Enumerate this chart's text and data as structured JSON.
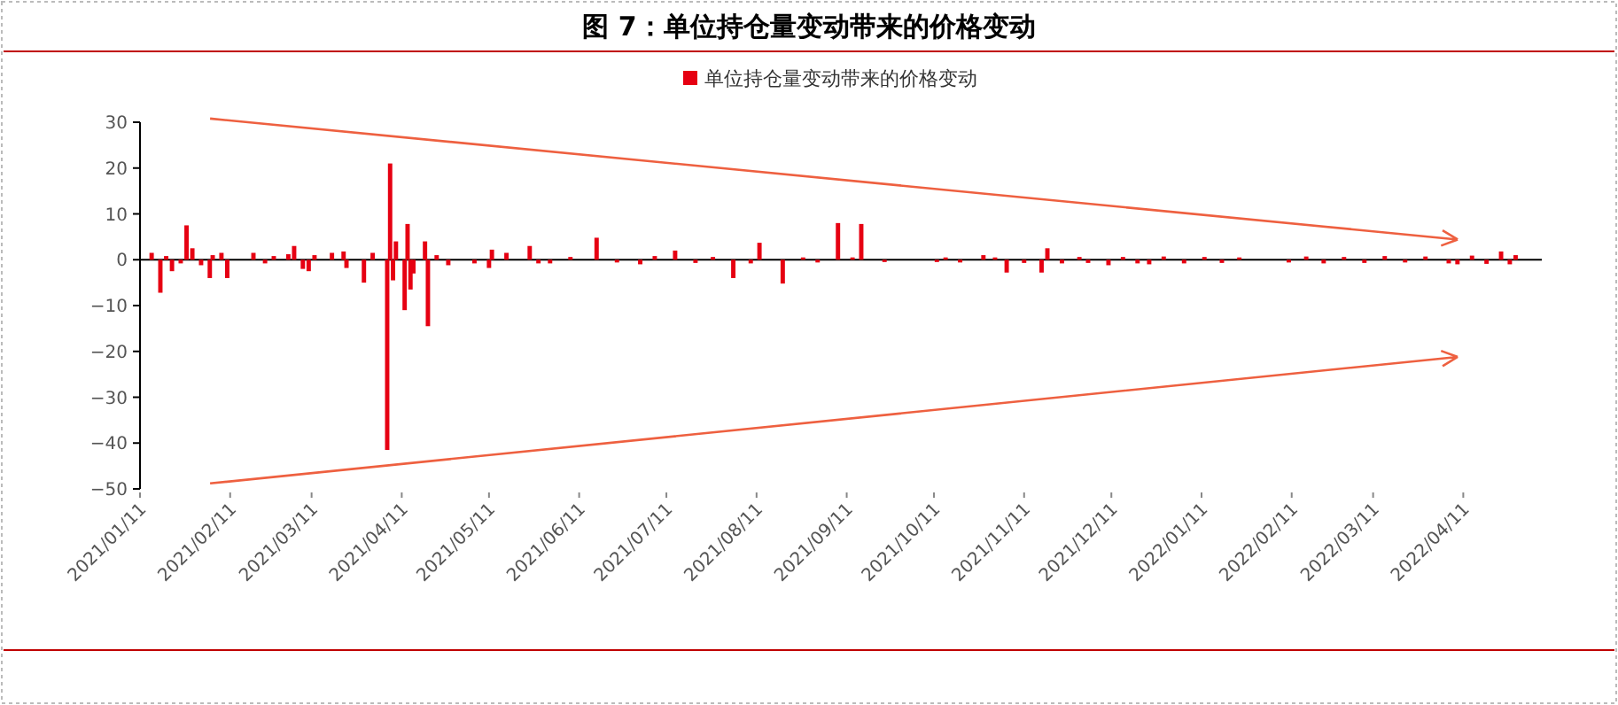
{
  "chart_data": {
    "type": "bar",
    "title": "图 7：单位持仓量变动带来的价格变动",
    "legend": "top",
    "xlim": [
      "2021-01-11",
      "2022-05-08"
    ],
    "ylim": [
      -50,
      30
    ],
    "yticks": [
      -50,
      -40,
      -30,
      -20,
      -10,
      0,
      10,
      20,
      30
    ],
    "xticks": [
      {
        "value": "2021-01-11",
        "label": "2021/01/11"
      },
      {
        "value": "2021-02-11",
        "label": "2021/02/11"
      },
      {
        "value": "2021-03-11",
        "label": "2021/03/11"
      },
      {
        "value": "2021-04-11",
        "label": "2021/04/11"
      },
      {
        "value": "2021-05-11",
        "label": "2021/05/11"
      },
      {
        "value": "2021-06-11",
        "label": "2021/06/11"
      },
      {
        "value": "2021-07-11",
        "label": "2021/07/11"
      },
      {
        "value": "2021-08-11",
        "label": "2021/08/11"
      },
      {
        "value": "2021-09-11",
        "label": "2021/09/11"
      },
      {
        "value": "2021-10-11",
        "label": "2021/10/11"
      },
      {
        "value": "2021-11-11",
        "label": "2021/11/11"
      },
      {
        "value": "2021-12-11",
        "label": "2021/12/11"
      },
      {
        "value": "2022-01-11",
        "label": "2022/01/11"
      },
      {
        "value": "2022-02-11",
        "label": "2022/02/11"
      },
      {
        "value": "2022-03-11",
        "label": "2022/03/11"
      },
      {
        "value": "2022-04-11",
        "label": "2022/04/11"
      }
    ],
    "x": [
      "2021-01-15",
      "2021-01-18",
      "2021-01-20",
      "2021-01-22",
      "2021-01-25",
      "2021-01-27",
      "2021-01-29",
      "2021-02-01",
      "2021-02-04",
      "2021-02-05",
      "2021-02-08",
      "2021-02-10",
      "2021-02-19",
      "2021-02-23",
      "2021-02-26",
      "2021-03-03",
      "2021-03-05",
      "2021-03-08",
      "2021-03-10",
      "2021-03-12",
      "2021-03-18",
      "2021-03-22",
      "2021-03-23",
      "2021-03-29",
      "2021-04-01",
      "2021-04-06",
      "2021-04-07",
      "2021-04-08",
      "2021-04-09",
      "2021-04-12",
      "2021-04-13",
      "2021-04-14",
      "2021-04-15",
      "2021-04-19",
      "2021-04-20",
      "2021-04-23",
      "2021-04-27",
      "2021-05-06",
      "2021-05-11",
      "2021-05-12",
      "2021-05-17",
      "2021-05-25",
      "2021-05-28",
      "2021-06-01",
      "2021-06-08",
      "2021-06-17",
      "2021-06-24",
      "2021-07-02",
      "2021-07-07",
      "2021-07-14",
      "2021-07-21",
      "2021-07-27",
      "2021-08-03",
      "2021-08-09",
      "2021-08-12",
      "2021-08-20",
      "2021-08-27",
      "2021-09-01",
      "2021-09-08",
      "2021-09-13",
      "2021-09-16",
      "2021-09-24",
      "2021-10-12",
      "2021-10-15",
      "2021-10-20",
      "2021-10-28",
      "2021-11-01",
      "2021-11-05",
      "2021-11-11",
      "2021-11-17",
      "2021-11-19",
      "2021-11-24",
      "2021-11-30",
      "2021-12-03",
      "2021-12-10",
      "2021-12-15",
      "2021-12-20",
      "2021-12-24",
      "2021-12-29",
      "2022-01-05",
      "2022-01-12",
      "2022-01-18",
      "2022-01-24",
      "2022-02-10",
      "2022-02-16",
      "2022-02-22",
      "2022-03-01",
      "2022-03-08",
      "2022-03-15",
      "2022-03-22",
      "2022-03-29",
      "2022-04-06",
      "2022-04-09",
      "2022-04-14",
      "2022-04-19",
      "2022-04-24",
      "2022-04-27",
      "2022-04-29"
    ],
    "series": [
      {
        "name": "单位持仓量变动带来的价格变动",
        "color": "#e60012",
        "values": [
          1.5,
          -7.2,
          0.8,
          -2.5,
          -0.8,
          7.5,
          2.5,
          -1.2,
          -4,
          1,
          1.5,
          -4,
          1.5,
          -0.8,
          0.8,
          1.2,
          3,
          -2,
          -2.5,
          1,
          1.5,
          1.8,
          -1.8,
          -5,
          1.5,
          -41.5,
          21,
          -4.5,
          4,
          -11,
          7.8,
          -6.5,
          -3,
          4,
          -14.5,
          1,
          -1.2,
          -0.8,
          -1.8,
          2.2,
          1.5,
          3,
          -0.8,
          -0.8,
          0.6,
          4.8,
          -0.6,
          -1,
          0.8,
          2,
          -0.7,
          0.6,
          -4,
          -0.8,
          3.7,
          -5.2,
          0.5,
          -0.6,
          8,
          0.5,
          7.8,
          -0.5,
          -0.5,
          0.5,
          -0.6,
          1,
          0.5,
          -2.8,
          -0.7,
          -2.8,
          2.5,
          -0.8,
          0.6,
          -0.7,
          -1.2,
          0.6,
          -0.8,
          -1,
          0.7,
          -0.8,
          0.6,
          -0.7,
          0.5,
          -0.6,
          0.7,
          -0.8,
          0.6,
          -0.7,
          0.8,
          -0.6,
          0.7,
          -0.8,
          -1,
          0.9,
          -0.9,
          1.8,
          -1,
          1
        ]
      }
    ]
  }
}
